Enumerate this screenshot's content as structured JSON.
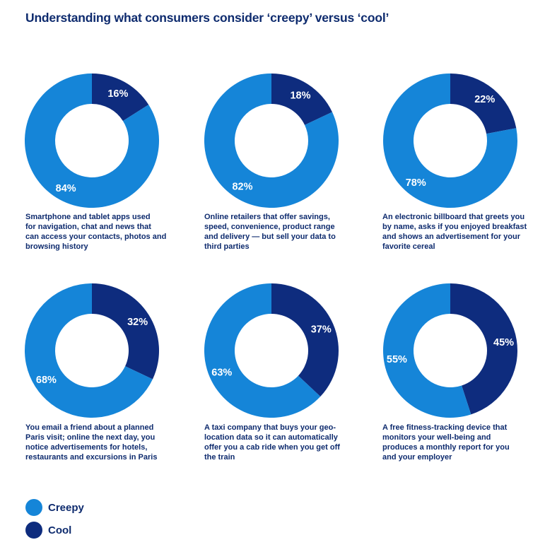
{
  "chart_data": {
    "type": "pie",
    "title": "Understanding what consumers consider ‘creepy’ versus ‘cool’",
    "legend": [
      {
        "name": "Creepy",
        "color": "#1585d8"
      },
      {
        "name": "Cool",
        "color": "#0e2c7e"
      }
    ],
    "legend_position": "bottom-left",
    "donuts": [
      {
        "creepy": 84,
        "cool": 16,
        "creepy_label": "84%",
        "cool_label": "16%",
        "caption": [
          "Smartphone and tablet apps used",
          "for navigation, chat and news that",
          "can access your contacts, photos and",
          "browsing history"
        ]
      },
      {
        "creepy": 82,
        "cool": 18,
        "creepy_label": "82%",
        "cool_label": "18%",
        "caption": [
          "Online retailers that offer savings,",
          "speed, convenience, product range",
          "and delivery — but sell your data to",
          "third parties"
        ]
      },
      {
        "creepy": 78,
        "cool": 22,
        "creepy_label": "78%",
        "cool_label": "22%",
        "caption": [
          "An electronic billboard that greets you",
          "by name, asks if you enjoyed breakfast",
          "and shows an advertisement for your",
          "favorite cereal"
        ]
      },
      {
        "creepy": 68,
        "cool": 32,
        "creepy_label": "68%",
        "cool_label": "32%",
        "caption": [
          "You email a friend about a planned",
          "Paris visit; online the next day, you",
          "notice advertisements for hotels,",
          "restaurants and excursions in Paris"
        ]
      },
      {
        "creepy": 63,
        "cool": 37,
        "creepy_label": "63%",
        "cool_label": "37%",
        "caption": [
          "A taxi company that buys your geo-",
          "location data so it can automatically",
          "offer you a cab ride when you get off",
          "the train"
        ]
      },
      {
        "creepy": 55,
        "cool": 45,
        "creepy_label": "55%",
        "cool_label": "45%",
        "caption": [
          "A free fitness-tracking device that",
          "monitors your well-being and",
          "produces a monthly report for you",
          "and your employer"
        ]
      }
    ]
  }
}
